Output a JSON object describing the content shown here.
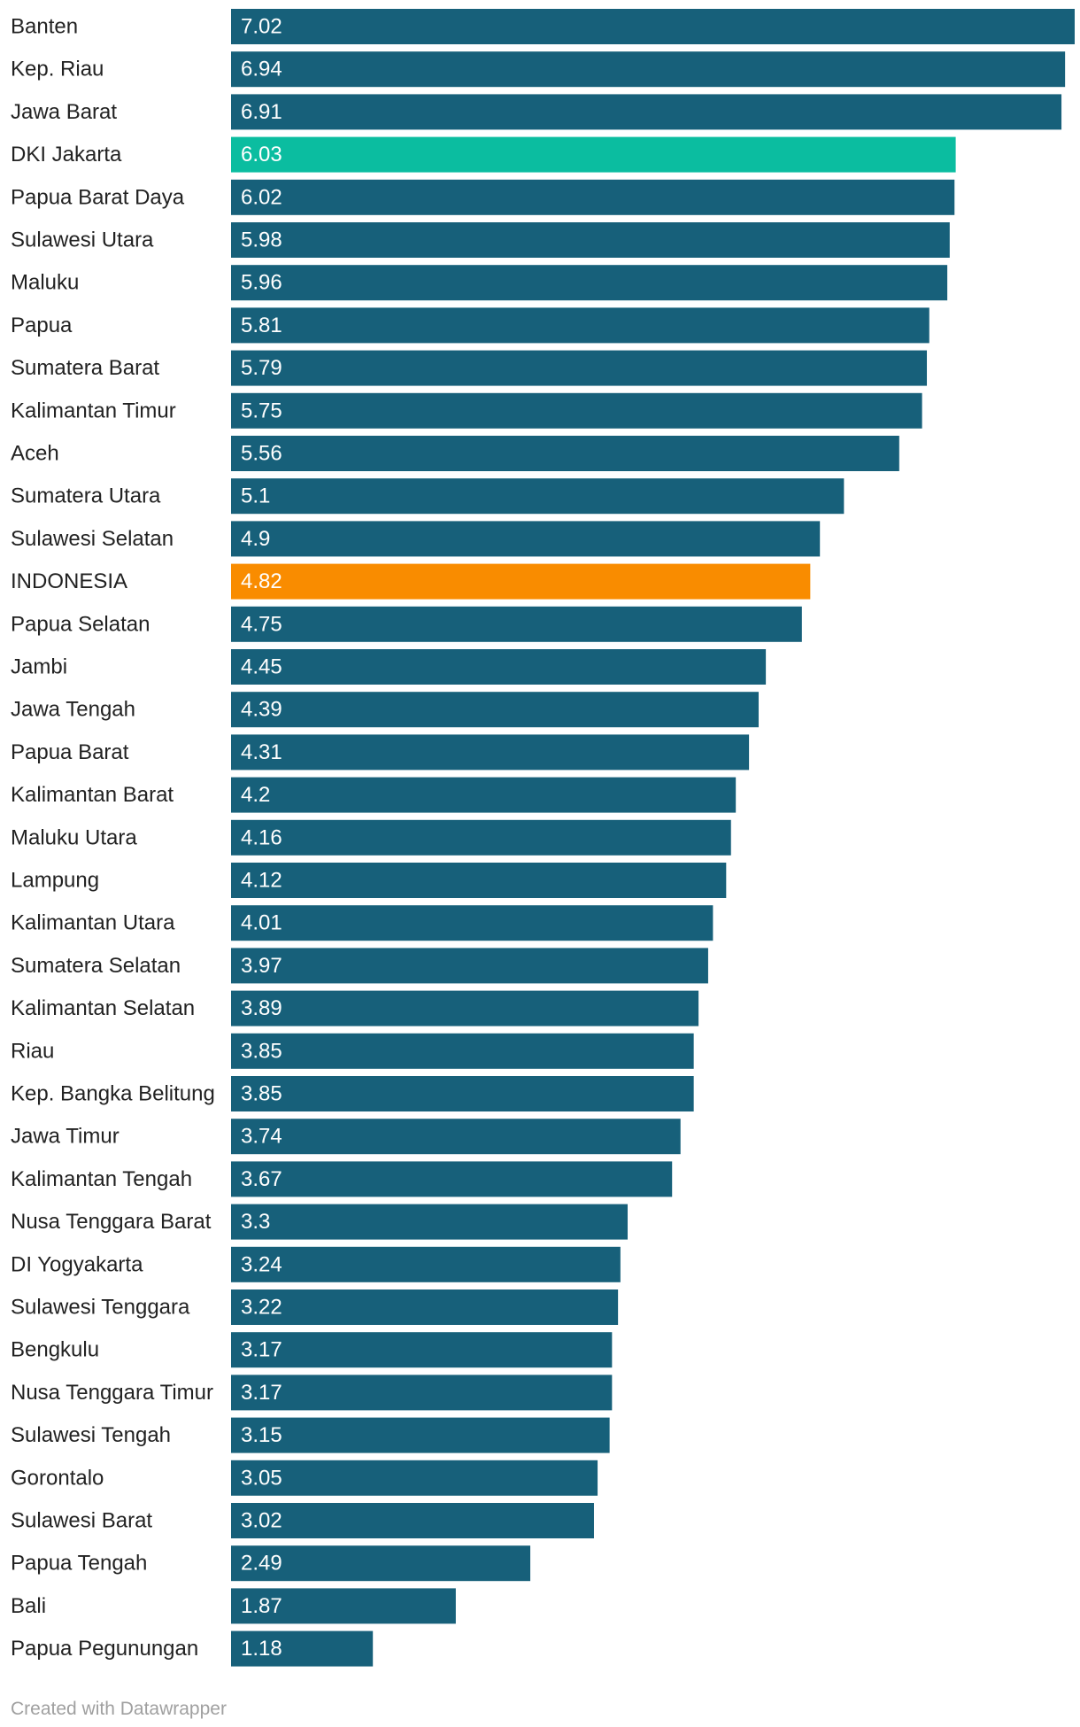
{
  "chart_data": {
    "type": "bar",
    "orientation": "horizontal",
    "categories": [
      "Banten",
      "Kep. Riau",
      "Jawa Barat",
      "DKI Jakarta",
      "Papua Barat Daya",
      "Sulawesi Utara",
      "Maluku",
      "Papua",
      "Sumatera Barat",
      "Kalimantan Timur",
      "Aceh",
      "Sumatera Utara",
      "Sulawesi Selatan",
      "INDONESIA",
      "Papua Selatan",
      "Jambi",
      "Jawa Tengah",
      "Papua Barat",
      "Kalimantan Barat",
      "Maluku Utara",
      "Lampung",
      "Kalimantan Utara",
      "Sumatera Selatan",
      "Kalimantan Selatan",
      "Riau",
      "Kep. Bangka Belitung",
      "Jawa Timur",
      "Kalimantan Tengah",
      "Nusa Tenggara Barat",
      "DI Yogyakarta",
      "Sulawesi Tenggara",
      "Bengkulu",
      "Nusa Tenggara Timur",
      "Sulawesi Tengah",
      "Gorontalo",
      "Sulawesi Barat",
      "Papua Tengah",
      "Bali",
      "Papua Pegunungan"
    ],
    "values": [
      7.02,
      6.94,
      6.91,
      6.03,
      6.02,
      5.98,
      5.96,
      5.81,
      5.79,
      5.75,
      5.56,
      5.1,
      4.9,
      4.82,
      4.75,
      4.45,
      4.39,
      4.31,
      4.2,
      4.16,
      4.12,
      4.01,
      3.97,
      3.89,
      3.85,
      3.85,
      3.74,
      3.67,
      3.3,
      3.24,
      3.22,
      3.17,
      3.17,
      3.15,
      3.05,
      3.02,
      2.49,
      1.87,
      1.18
    ],
    "value_labels": [
      "7.02",
      "6.94",
      "6.91",
      "6.03",
      "6.02",
      "5.98",
      "5.96",
      "5.81",
      "5.79",
      "5.75",
      "5.56",
      "5.1",
      "4.9",
      "4.82",
      "4.75",
      "4.45",
      "4.39",
      "4.31",
      "4.2",
      "4.16",
      "4.12",
      "4.01",
      "3.97",
      "3.89",
      "3.85",
      "3.85",
      "3.74",
      "3.67",
      "3.3",
      "3.24",
      "3.22",
      "3.17",
      "3.17",
      "3.15",
      "3.05",
      "3.02",
      "2.49",
      "1.87",
      "1.18"
    ],
    "xlim": [
      0,
      7.02
    ],
    "grid": false,
    "title": "",
    "xlabel": "",
    "ylabel": "",
    "colors": {
      "default": "#17607a",
      "highlight_region": "#0bbda0",
      "national": "#f98c00"
    },
    "highlights": {
      "DKI Jakarta": "highlight_region",
      "INDONESIA": "national"
    }
  },
  "footer": {
    "credit": "Created with Datawrapper"
  }
}
